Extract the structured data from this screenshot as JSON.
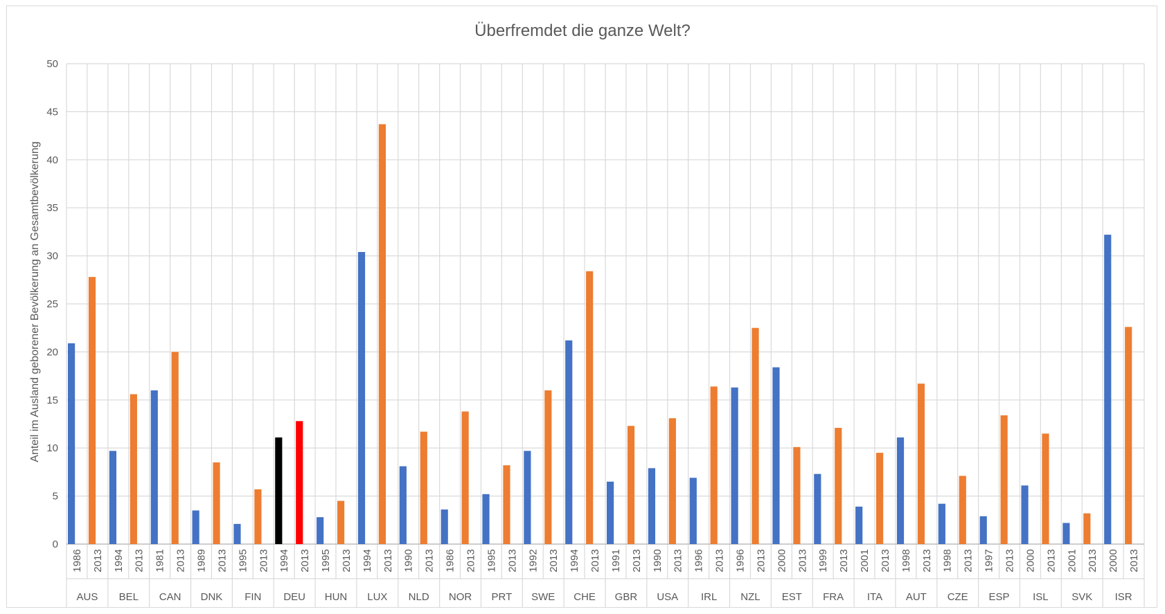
{
  "chart_data": {
    "type": "bar",
    "title": "Überfremdet die ganze Welt?",
    "xlabel": "",
    "ylabel": "Anteil im Ausland geborener Bevölkerung an Gesamtbevölkerung",
    "ylim": [
      0,
      50
    ],
    "yticks": [
      0,
      5,
      10,
      15,
      20,
      25,
      30,
      35,
      40,
      45,
      50
    ],
    "grid": true,
    "legend": "none",
    "colors": {
      "early": "#4472c4",
      "late": "#ed7d31",
      "deu_early": "#000000",
      "deu_late": "#ff0000",
      "grid": "#d9d9d9",
      "text": "#595959"
    },
    "groups": [
      {
        "country": "AUS",
        "bars": [
          {
            "year": "1986",
            "value": 20.9
          },
          {
            "year": "2013",
            "value": 27.8
          }
        ]
      },
      {
        "country": "BEL",
        "bars": [
          {
            "year": "1994",
            "value": 9.7
          },
          {
            "year": "2013",
            "value": 15.6
          }
        ]
      },
      {
        "country": "CAN",
        "bars": [
          {
            "year": "1981",
            "value": 16.0
          },
          {
            "year": "2013",
            "value": 20.0
          }
        ]
      },
      {
        "country": "DNK",
        "bars": [
          {
            "year": "1989",
            "value": 3.5
          },
          {
            "year": "2013",
            "value": 8.5
          }
        ]
      },
      {
        "country": "FIN",
        "bars": [
          {
            "year": "1995",
            "value": 2.1
          },
          {
            "year": "2013",
            "value": 5.7
          }
        ]
      },
      {
        "country": "DEU",
        "bars": [
          {
            "year": "1994",
            "value": 11.1,
            "color": "#000000"
          },
          {
            "year": "2013",
            "value": 12.8,
            "color": "#ff0000"
          }
        ]
      },
      {
        "country": "HUN",
        "bars": [
          {
            "year": "1995",
            "value": 2.8
          },
          {
            "year": "2013",
            "value": 4.5
          }
        ]
      },
      {
        "country": "LUX",
        "bars": [
          {
            "year": "1994",
            "value": 30.4
          },
          {
            "year": "2013",
            "value": 43.7
          }
        ]
      },
      {
        "country": "NLD",
        "bars": [
          {
            "year": "1990",
            "value": 8.1
          },
          {
            "year": "2013",
            "value": 11.7
          }
        ]
      },
      {
        "country": "NOR",
        "bars": [
          {
            "year": "1986",
            "value": 3.6
          },
          {
            "year": "2013",
            "value": 13.8
          }
        ]
      },
      {
        "country": "PRT",
        "bars": [
          {
            "year": "1995",
            "value": 5.2
          },
          {
            "year": "2013",
            "value": 8.2
          }
        ]
      },
      {
        "country": "SWE",
        "bars": [
          {
            "year": "1992",
            "value": 9.7
          },
          {
            "year": "2013",
            "value": 16.0
          }
        ]
      },
      {
        "country": "CHE",
        "bars": [
          {
            "year": "1994",
            "value": 21.2
          },
          {
            "year": "2013",
            "value": 28.4
          }
        ]
      },
      {
        "country": "GBR",
        "bars": [
          {
            "year": "1991",
            "value": 6.5
          },
          {
            "year": "2013",
            "value": 12.3
          }
        ]
      },
      {
        "country": "USA",
        "bars": [
          {
            "year": "1990",
            "value": 7.9
          },
          {
            "year": "2013",
            "value": 13.1
          }
        ]
      },
      {
        "country": "IRL",
        "bars": [
          {
            "year": "1996",
            "value": 6.9
          },
          {
            "year": "2013",
            "value": 16.4
          }
        ]
      },
      {
        "country": "NZL",
        "bars": [
          {
            "year": "1996",
            "value": 16.3
          },
          {
            "year": "2013",
            "value": 22.5
          }
        ]
      },
      {
        "country": "EST",
        "bars": [
          {
            "year": "2000",
            "value": 18.4
          },
          {
            "year": "2013",
            "value": 10.1
          }
        ]
      },
      {
        "country": "FRA",
        "bars": [
          {
            "year": "1999",
            "value": 7.3
          },
          {
            "year": "2013",
            "value": 12.1
          }
        ]
      },
      {
        "country": "ITA",
        "bars": [
          {
            "year": "2001",
            "value": 3.9
          },
          {
            "year": "2013",
            "value": 9.5
          }
        ]
      },
      {
        "country": "AUT",
        "bars": [
          {
            "year": "1998",
            "value": 11.1
          },
          {
            "year": "2013",
            "value": 16.7
          }
        ]
      },
      {
        "country": "CZE",
        "bars": [
          {
            "year": "1998",
            "value": 4.2
          },
          {
            "year": "2013",
            "value": 7.1
          }
        ]
      },
      {
        "country": "ESP",
        "bars": [
          {
            "year": "1997",
            "value": 2.9
          },
          {
            "year": "2013",
            "value": 13.4
          }
        ]
      },
      {
        "country": "ISL",
        "bars": [
          {
            "year": "2000",
            "value": 6.1
          },
          {
            "year": "2013",
            "value": 11.5
          }
        ]
      },
      {
        "country": "SVK",
        "bars": [
          {
            "year": "2001",
            "value": 2.2
          },
          {
            "year": "2013",
            "value": 3.2
          }
        ]
      },
      {
        "country": "ISR",
        "bars": [
          {
            "year": "2000",
            "value": 32.2
          },
          {
            "year": "2013",
            "value": 22.6
          }
        ]
      }
    ]
  }
}
